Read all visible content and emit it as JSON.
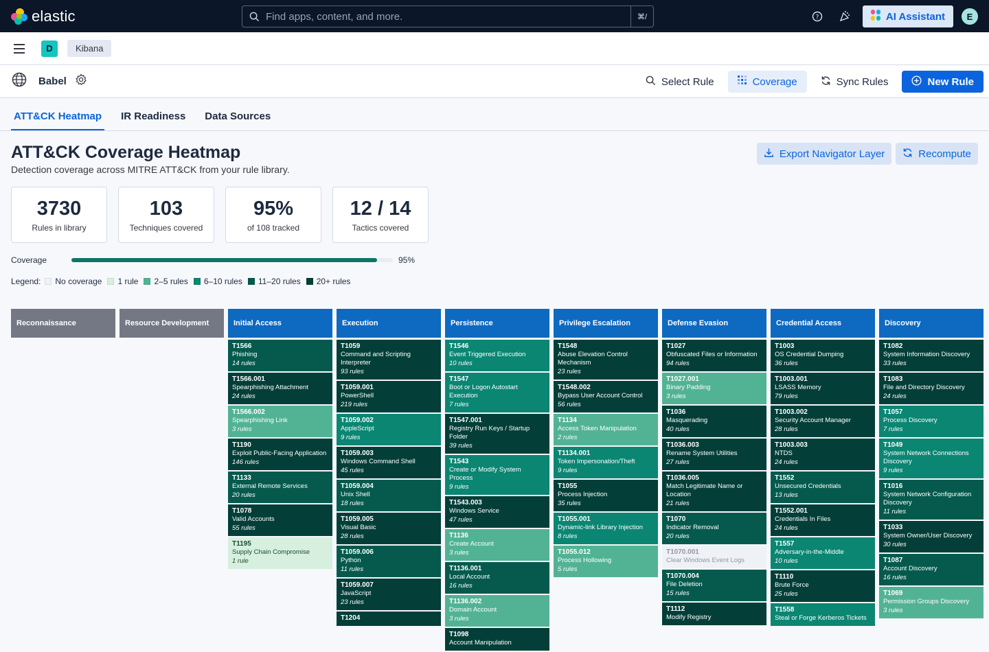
{
  "topbar": {
    "brand": "elastic",
    "search_placeholder": "Find apps, content, and more.",
    "search_shortcut": "⌘/",
    "ai_label": "AI Assistant",
    "avatar_initial": "E"
  },
  "nav": {
    "space_initial": "D",
    "breadcrumb": "Kibana"
  },
  "app": {
    "name": "Babel",
    "actions": {
      "select_rule": "Select Rule",
      "coverage": "Coverage",
      "sync_rules": "Sync Rules",
      "new_rule": "New Rule"
    }
  },
  "tabs": [
    "ATT&CK Heatmap",
    "IR Readiness",
    "Data Sources"
  ],
  "page": {
    "title": "ATT&CK Coverage Heatmap",
    "subtitle": "Detection coverage across MITRE ATT&CK from your rule library.",
    "export_label": "Export Navigator Layer",
    "recompute_label": "Recompute"
  },
  "stats": [
    {
      "value": "3730",
      "label": "Rules in library"
    },
    {
      "value": "103",
      "label": "Techniques covered"
    },
    {
      "value": "95%",
      "label": "of 108 tracked"
    },
    {
      "value": "12 / 14",
      "label": "Tactics covered"
    }
  ],
  "coverage": {
    "label": "Coverage",
    "percent_text": "95%",
    "percent": 95
  },
  "legend": {
    "title": "Legend:",
    "items": [
      {
        "label": "No coverage",
        "color": "#eef1f5"
      },
      {
        "label": "1 rule",
        "color": "#d6efde"
      },
      {
        "label": "2–5 rules",
        "color": "#52b394"
      },
      {
        "label": "6–10 rules",
        "color": "#0b8673"
      },
      {
        "label": "11–20 rules",
        "color": "#055a4d"
      },
      {
        "label": "20+ rules",
        "color": "#033f38"
      }
    ]
  },
  "tactics": [
    {
      "name": "Reconnaissance",
      "covered": false,
      "techniques": []
    },
    {
      "name": "Resource Development",
      "covered": false,
      "techniques": []
    },
    {
      "name": "Initial Access",
      "covered": true,
      "techniques": [
        {
          "id": "T1566",
          "name": "Phishing",
          "rules": "14 rules",
          "level": 4
        },
        {
          "id": "T1566.001",
          "name": "Spearphishing Attachment",
          "rules": "24 rules",
          "level": 5
        },
        {
          "id": "T1566.002",
          "name": "Spearphishing Link",
          "rules": "3 rules",
          "level": 2
        },
        {
          "id": "T1190",
          "name": "Exploit Public-Facing Application",
          "rules": "146 rules",
          "level": 5
        },
        {
          "id": "T1133",
          "name": "External Remote Services",
          "rules": "20 rules",
          "level": 4
        },
        {
          "id": "T1078",
          "name": "Valid Accounts",
          "rules": "55 rules",
          "level": 5
        },
        {
          "id": "T1195",
          "name": "Supply Chain Compromise",
          "rules": "1 rule",
          "level": 1
        }
      ]
    },
    {
      "name": "Execution",
      "covered": true,
      "techniques": [
        {
          "id": "T1059",
          "name": "Command and Scripting Interpreter",
          "rules": "93 rules",
          "level": 5
        },
        {
          "id": "T1059.001",
          "name": "PowerShell",
          "rules": "219 rules",
          "level": 5
        },
        {
          "id": "T1059.002",
          "name": "AppleScript",
          "rules": "9 rules",
          "level": 3
        },
        {
          "id": "T1059.003",
          "name": "Windows Command Shell",
          "rules": "45 rules",
          "level": 5
        },
        {
          "id": "T1059.004",
          "name": "Unix Shell",
          "rules": "18 rules",
          "level": 4
        },
        {
          "id": "T1059.005",
          "name": "Visual Basic",
          "rules": "28 rules",
          "level": 5
        },
        {
          "id": "T1059.006",
          "name": "Python",
          "rules": "11 rules",
          "level": 4
        },
        {
          "id": "T1059.007",
          "name": "JavaScript",
          "rules": "23 rules",
          "level": 5
        },
        {
          "id": "T1204",
          "name": "",
          "rules": "",
          "level": 5
        }
      ]
    },
    {
      "name": "Persistence",
      "covered": true,
      "techniques": [
        {
          "id": "T1546",
          "name": "Event Triggered Execution",
          "rules": "10 rules",
          "level": 3
        },
        {
          "id": "T1547",
          "name": "Boot or Logon Autostart Execution",
          "rules": "7 rules",
          "level": 3
        },
        {
          "id": "T1547.001",
          "name": "Registry Run Keys / Startup Folder",
          "rules": "39 rules",
          "level": 5
        },
        {
          "id": "T1543",
          "name": "Create or Modify System Process",
          "rules": "9 rules",
          "level": 3
        },
        {
          "id": "T1543.003",
          "name": "Windows Service",
          "rules": "47 rules",
          "level": 5
        },
        {
          "id": "T1136",
          "name": "Create Account",
          "rules": "3 rules",
          "level": 2
        },
        {
          "id": "T1136.001",
          "name": "Local Account",
          "rules": "16 rules",
          "level": 4
        },
        {
          "id": "T1136.002",
          "name": "Domain Account",
          "rules": "3 rules",
          "level": 2
        },
        {
          "id": "T1098",
          "name": "Account Manipulation",
          "rules": "",
          "level": 5
        }
      ]
    },
    {
      "name": "Privilege Escalation",
      "covered": true,
      "techniques": [
        {
          "id": "T1548",
          "name": "Abuse Elevation Control Mechanism",
          "rules": "23 rules",
          "level": 5
        },
        {
          "id": "T1548.002",
          "name": "Bypass User Account Control",
          "rules": "56 rules",
          "level": 5
        },
        {
          "id": "T1134",
          "name": "Access Token Manipulation",
          "rules": "2 rules",
          "level": 2
        },
        {
          "id": "T1134.001",
          "name": "Token Impersonation/Theft",
          "rules": "9 rules",
          "level": 3
        },
        {
          "id": "T1055",
          "name": "Process Injection",
          "rules": "35 rules",
          "level": 5
        },
        {
          "id": "T1055.001",
          "name": "Dynamic-link Library Injection",
          "rules": "8 rules",
          "level": 3
        },
        {
          "id": "T1055.012",
          "name": "Process Hollowing",
          "rules": "5 rules",
          "level": 2
        }
      ]
    },
    {
      "name": "Defense Evasion",
      "covered": true,
      "techniques": [
        {
          "id": "T1027",
          "name": "Obfuscated Files or Information",
          "rules": "94 rules",
          "level": 5
        },
        {
          "id": "T1027.001",
          "name": "Binary Padding",
          "rules": "3 rules",
          "level": 2
        },
        {
          "id": "T1036",
          "name": "Masquerading",
          "rules": "40 rules",
          "level": 5
        },
        {
          "id": "T1036.003",
          "name": "Rename System Utilities",
          "rules": "27 rules",
          "level": 5
        },
        {
          "id": "T1036.005",
          "name": "Match Legitimate Name or Location",
          "rules": "21 rules",
          "level": 5
        },
        {
          "id": "T1070",
          "name": "Indicator Removal",
          "rules": "20 rules",
          "level": 4
        },
        {
          "id": "T1070.001",
          "name": "Clear Windows Event Logs",
          "rules": "",
          "level": 0
        },
        {
          "id": "T1070.004",
          "name": "File Deletion",
          "rules": "15 rules",
          "level": 4
        },
        {
          "id": "T1112",
          "name": "Modify Registry",
          "rules": "",
          "level": 5
        }
      ]
    },
    {
      "name": "Credential Access",
      "covered": true,
      "techniques": [
        {
          "id": "T1003",
          "name": "OS Credential Dumping",
          "rules": "36 rules",
          "level": 5
        },
        {
          "id": "T1003.001",
          "name": "LSASS Memory",
          "rules": "79 rules",
          "level": 5
        },
        {
          "id": "T1003.002",
          "name": "Security Account Manager",
          "rules": "28 rules",
          "level": 5
        },
        {
          "id": "T1003.003",
          "name": "NTDS",
          "rules": "24 rules",
          "level": 5
        },
        {
          "id": "T1552",
          "name": "Unsecured Credentials",
          "rules": "13 rules",
          "level": 4
        },
        {
          "id": "T1552.001",
          "name": "Credentials In Files",
          "rules": "24 rules",
          "level": 5
        },
        {
          "id": "T1557",
          "name": "Adversary-in-the-Middle",
          "rules": "10 rules",
          "level": 3
        },
        {
          "id": "T1110",
          "name": "Brute Force",
          "rules": "25 rules",
          "level": 5
        },
        {
          "id": "T1558",
          "name": "Steal or Forge Kerberos Tickets",
          "rules": "",
          "level": 3
        }
      ]
    },
    {
      "name": "Discovery",
      "covered": true,
      "techniques": [
        {
          "id": "T1082",
          "name": "System Information Discovery",
          "rules": "33 rules",
          "level": 5
        },
        {
          "id": "T1083",
          "name": "File and Directory Discovery",
          "rules": "24 rules",
          "level": 5
        },
        {
          "id": "T1057",
          "name": "Process Discovery",
          "rules": "7 rules",
          "level": 3
        },
        {
          "id": "T1049",
          "name": "System Network Connections Discovery",
          "rules": "9 rules",
          "level": 3
        },
        {
          "id": "T1016",
          "name": "System Network Configuration Discovery",
          "rules": "11 rules",
          "level": 4
        },
        {
          "id": "T1033",
          "name": "System Owner/User Discovery",
          "rules": "30 rules",
          "level": 5
        },
        {
          "id": "T1087",
          "name": "Account Discovery",
          "rules": "16 rules",
          "level": 4
        },
        {
          "id": "T1069",
          "name": "Permission Groups Discovery",
          "rules": "3 rules",
          "level": 2
        }
      ]
    }
  ]
}
